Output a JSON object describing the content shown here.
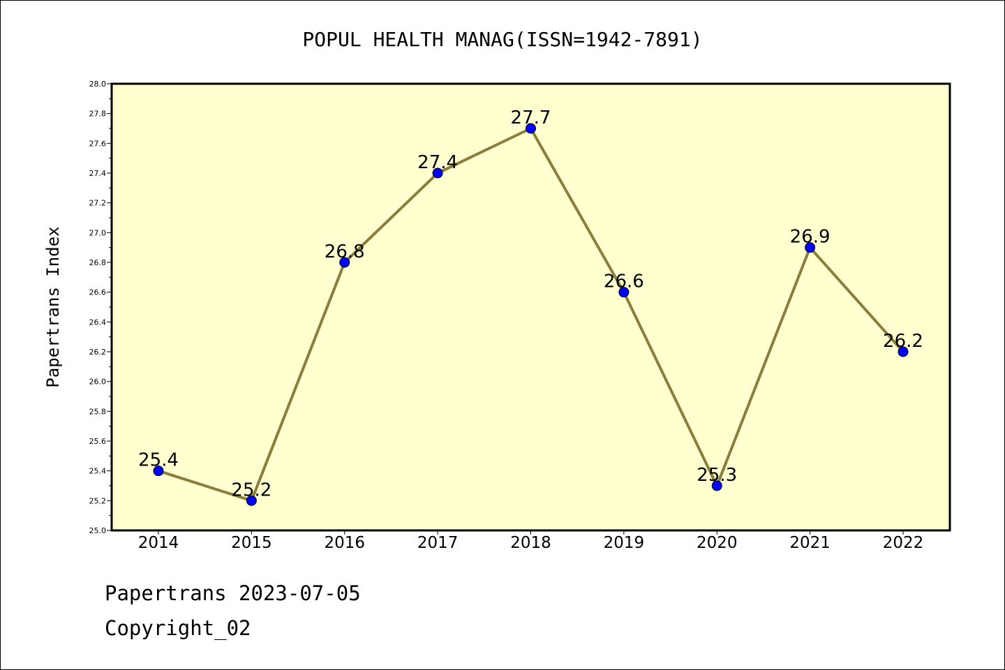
{
  "chart_data": {
    "type": "line",
    "title": "POPUL HEALTH MANAG(ISSN=1942-7891)",
    "xlabel": "",
    "ylabel": "Papertrans Index",
    "categories": [
      "2014",
      "2015",
      "2016",
      "2017",
      "2018",
      "2019",
      "2020",
      "2021",
      "2022"
    ],
    "values": [
      25.4,
      25.2,
      26.8,
      27.4,
      27.7,
      26.6,
      25.3,
      26.9,
      26.2
    ],
    "data_labels": [
      "25.4",
      "25.2",
      "26.8",
      "27.4",
      "27.7",
      "26.6",
      "25.3",
      "26.9",
      "26.2"
    ],
    "ylim": [
      25.0,
      28.0
    ],
    "yticks": [
      "25.0",
      "25.2",
      "25.4",
      "25.6",
      "25.8",
      "26.0",
      "26.2",
      "26.4",
      "26.6",
      "26.8",
      "27.0",
      "27.2",
      "27.4",
      "27.6",
      "27.8",
      "28.0"
    ],
    "grid": false,
    "legend": "none",
    "colors": {
      "plot_background": "#ffffd0",
      "line": "#8b7d3a",
      "marker": "#0000ff"
    }
  },
  "footer": {
    "line1": "Papertrans 2023-07-05",
    "line2": "Copyright_02"
  }
}
